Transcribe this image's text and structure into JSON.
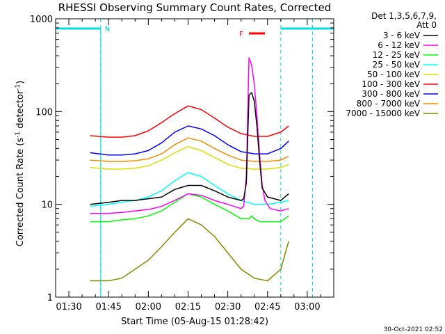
{
  "chart_data": {
    "type": "line",
    "title": "RHESSI Observing Summary Count Rates, Corrected",
    "xlabel": "Start Time (05-Aug-15 01:28:42)",
    "ylabel_parts": [
      "Corrected Count Rate (s",
      "-1",
      " detector",
      "-1",
      ")"
    ],
    "y_scale": "log",
    "ylim": [
      1,
      1000
    ],
    "xlim": [
      "01:25",
      "03:10"
    ],
    "x_ticks": [
      "01:30",
      "01:45",
      "02:00",
      "02:15",
      "02:30",
      "02:45",
      "03:00"
    ],
    "y_ticks": [
      "1",
      "10",
      "100",
      "1000"
    ],
    "grid": false,
    "legend_position": "right",
    "legend_header": [
      "Det 1,3,5,6,7,9,",
      "Att 0"
    ],
    "footer_timestamp": "30-Oct-2021 02:52",
    "series": [
      {
        "name": "3 - 6 keV",
        "color": "#000000",
        "x": [
          "01:38",
          "01:45",
          "01:50",
          "01:55",
          "02:00",
          "02:05",
          "02:10",
          "02:15",
          "02:20",
          "02:25",
          "02:30",
          "02:35",
          "02:36",
          "02:37",
          "02:38",
          "02:39",
          "02:40",
          "02:41",
          "02:42",
          "02:43",
          "02:45",
          "02:50",
          "02:53"
        ],
        "values": [
          10,
          10.5,
          11,
          11,
          11.5,
          12,
          14.5,
          16,
          16,
          14,
          12,
          11,
          11.5,
          17,
          150,
          160,
          130,
          70,
          30,
          15,
          12,
          11,
          13
        ]
      },
      {
        "name": "6 - 12 keV",
        "color": "#ff00ff",
        "x": [
          "01:38",
          "01:45",
          "01:50",
          "01:55",
          "02:00",
          "02:05",
          "02:10",
          "02:15",
          "02:20",
          "02:25",
          "02:30",
          "02:35",
          "02:36",
          "02:37",
          "02:38",
          "02:39",
          "02:40",
          "02:41",
          "02:42",
          "02:43",
          "02:44",
          "02:46",
          "02:50",
          "02:53"
        ],
        "values": [
          8,
          8,
          8.2,
          8.5,
          8.8,
          9.5,
          11,
          13,
          12.5,
          11,
          10,
          9,
          9.5,
          20,
          380,
          320,
          200,
          90,
          35,
          16,
          11,
          9,
          8.5,
          9
        ]
      },
      {
        "name": "12 - 25 keV",
        "color": "#00ff00",
        "x": [
          "01:38",
          "01:45",
          "01:50",
          "01:55",
          "02:00",
          "02:05",
          "02:10",
          "02:15",
          "02:20",
          "02:25",
          "02:30",
          "02:35",
          "02:38",
          "02:39",
          "02:40",
          "02:42",
          "02:45",
          "02:50",
          "02:53"
        ],
        "values": [
          6.5,
          6.5,
          6.8,
          7,
          7.5,
          8.5,
          10.5,
          13,
          12,
          10,
          8.5,
          7,
          7,
          7.5,
          7,
          6.5,
          6.5,
          6.5,
          7.5
        ]
      },
      {
        "name": "25 - 50 keV",
        "color": "#00ffff",
        "x": [
          "01:38",
          "01:45",
          "01:50",
          "01:55",
          "02:00",
          "02:05",
          "02:10",
          "02:15",
          "02:20",
          "02:25",
          "02:30",
          "02:35",
          "02:40",
          "02:45",
          "02:50",
          "02:53"
        ],
        "values": [
          9.5,
          10,
          10.5,
          11,
          12,
          14,
          18,
          22,
          20,
          16,
          13,
          11,
          10,
          10,
          10.5,
          11
        ]
      },
      {
        "name": "50 - 100 keV",
        "color": "#dddd00",
        "x": [
          "01:38",
          "01:45",
          "01:50",
          "01:55",
          "02:00",
          "02:05",
          "02:10",
          "02:15",
          "02:20",
          "02:25",
          "02:30",
          "02:35",
          "02:40",
          "02:45",
          "02:50",
          "02:53"
        ],
        "values": [
          25,
          24,
          24,
          24.5,
          26,
          30,
          36,
          42,
          38,
          32,
          27,
          24.5,
          24,
          24,
          25,
          27
        ]
      },
      {
        "name": "100 - 300 keV",
        "color": "#ff0000",
        "x": [
          "01:38",
          "01:45",
          "01:50",
          "01:55",
          "02:00",
          "02:05",
          "02:10",
          "02:15",
          "02:20",
          "02:25",
          "02:30",
          "02:35",
          "02:40",
          "02:45",
          "02:50",
          "02:53"
        ],
        "values": [
          55,
          53,
          53,
          55,
          62,
          76,
          95,
          115,
          105,
          85,
          68,
          58,
          54,
          54,
          60,
          70
        ]
      },
      {
        "name": "300 - 800 keV",
        "color": "#0000ff",
        "x": [
          "01:38",
          "01:45",
          "01:50",
          "01:55",
          "02:00",
          "02:05",
          "02:10",
          "02:15",
          "02:20",
          "02:25",
          "02:30",
          "02:35",
          "02:40",
          "02:45",
          "02:50",
          "02:53"
        ],
        "values": [
          36,
          34,
          34,
          35,
          38,
          46,
          60,
          70,
          65,
          55,
          44,
          37,
          35,
          35,
          40,
          48
        ]
      },
      {
        "name": "800 - 7000 keV",
        "color": "#ff8800",
        "x": [
          "01:38",
          "01:45",
          "01:50",
          "01:55",
          "02:00",
          "02:05",
          "02:10",
          "02:15",
          "02:20",
          "02:25",
          "02:30",
          "02:35",
          "02:40",
          "02:45",
          "02:50",
          "02:53"
        ],
        "values": [
          30,
          29,
          29,
          29.5,
          31,
          35,
          44,
          52,
          48,
          40,
          34,
          30,
          29,
          29,
          30,
          33
        ]
      },
      {
        "name": "7000 - 15000 keV",
        "color": "#888800",
        "x": [
          "01:38",
          "01:45",
          "01:50",
          "01:55",
          "02:00",
          "02:05",
          "02:10",
          "02:15",
          "02:20",
          "02:25",
          "02:30",
          "02:35",
          "02:40",
          "02:45",
          "02:50",
          "02:53"
        ],
        "values": [
          1.5,
          1.5,
          1.6,
          2,
          2.5,
          3.5,
          5,
          7,
          6,
          4.5,
          3,
          2,
          1.6,
          1.5,
          2,
          4
        ]
      }
    ],
    "annotations": {
      "N_label": "N",
      "F_label": "F",
      "N_intervals": [
        [
          "01:25",
          "01:42"
        ],
        [
          "02:50",
          "03:10"
        ]
      ],
      "F_interval": [
        "02:38",
        "02:44"
      ],
      "dashed_verticals": [
        "01:42",
        "02:50",
        "03:02"
      ]
    }
  }
}
